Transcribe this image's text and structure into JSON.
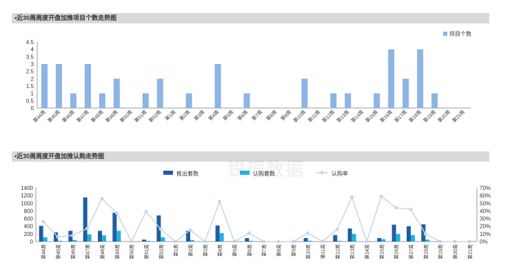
{
  "chart_data": [
    {
      "type": "bar",
      "title": "•近30周周度开盘加推项目个数走势图",
      "categories": [
        "第44周",
        "第45周",
        "第46周",
        "第47周",
        "第48周",
        "第49周",
        "第50周",
        "第51周",
        "第52周",
        "第1周",
        "第2周",
        "第3周",
        "第4周",
        "第5周",
        "第6周",
        "第7周",
        "第8周",
        "第9周",
        "第10周",
        "第11周",
        "第12周",
        "第13周",
        "第14周",
        "第15周",
        "第16周",
        "第17周",
        "第18周",
        "第19周",
        "第20周",
        "第21周"
      ],
      "series": [
        {
          "name": "项目个数",
          "color": "#8db4e2",
          "values": [
            3,
            3,
            1,
            3,
            1,
            2,
            0,
            1,
            2,
            0,
            1,
            0,
            3,
            0,
            1,
            0,
            0,
            0,
            2,
            0,
            1,
            1,
            0,
            1,
            4,
            2,
            4,
            1,
            0,
            0
          ]
        }
      ],
      "yticks": [
        "0",
        "0.5",
        "1",
        "1.5",
        "2",
        "2.5",
        "3",
        "3.5",
        "4",
        "4.5"
      ],
      "ylim": [
        0,
        4.5
      ],
      "legend": "top-right",
      "grid": false
    },
    {
      "type": "bar",
      "title": "•近30周周度开盘加推认购走势图",
      "categories": [
        "第44周",
        "第45周",
        "第46周",
        "第47周",
        "第48周",
        "第49周",
        "第50周",
        "第51周",
        "第52周",
        "第1周",
        "第2周",
        "第3周",
        "第4周",
        "第5周",
        "第6周",
        "第7周",
        "第8周",
        "第9周",
        "第10周",
        "第11周",
        "第12周",
        "第13周",
        "第14周",
        "第15周",
        "第16周",
        "第17周",
        "第18周",
        "第19周",
        "第20周",
        "第21周"
      ],
      "series": [
        {
          "name": "推出套数",
          "type": "bar",
          "color": "#1f5fa0",
          "values": [
            410,
            240,
            280,
            1150,
            280,
            750,
            0,
            50,
            680,
            0,
            280,
            0,
            420,
            0,
            90,
            0,
            0,
            0,
            90,
            0,
            170,
            340,
            0,
            90,
            440,
            400,
            450,
            0,
            0,
            0
          ]
        },
        {
          "name": "认购套数",
          "type": "bar",
          "color": "#1fb2e8",
          "values": [
            110,
            20,
            40,
            190,
            160,
            280,
            0,
            20,
            110,
            0,
            40,
            0,
            220,
            0,
            20,
            0,
            0,
            0,
            20,
            0,
            20,
            200,
            0,
            60,
            200,
            170,
            50,
            0,
            0,
            0
          ]
        },
        {
          "name": "认购率",
          "type": "line",
          "axis": "right",
          "color": "#c6d5ea",
          "values": [
            26,
            6,
            8,
            17,
            56,
            37,
            0,
            39,
            16,
            0,
            15,
            0,
            52,
            0,
            11,
            0,
            0,
            0,
            11,
            0,
            16,
            58,
            0,
            59,
            44,
            42,
            10,
            0,
            0,
            0
          ]
        }
      ],
      "yticks_left": [
        "0",
        "200",
        "400",
        "600",
        "800",
        "1000",
        "1200",
        "1400"
      ],
      "yticks_right": [
        "0%",
        "10%",
        "20%",
        "30%",
        "40%",
        "50%",
        "60%",
        "70%"
      ],
      "ylim_left": [
        0,
        1400
      ],
      "ylim_right": [
        0,
        70
      ],
      "legend": "top-center",
      "grid": false
    }
  ],
  "watermark": "锐理数据"
}
